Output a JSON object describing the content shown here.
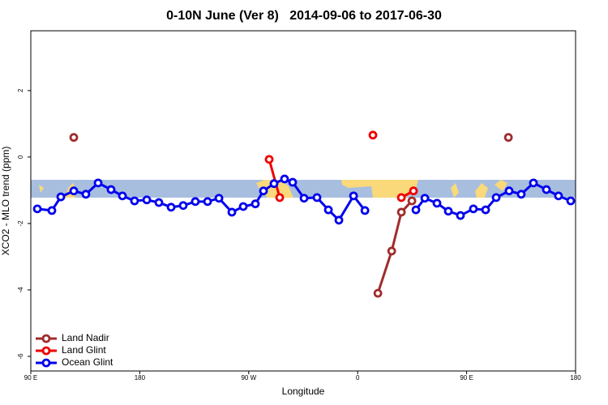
{
  "chart_data": {
    "type": "line",
    "title": "0-10N June (Ver 8)   2014-09-06 to 2017-06-30",
    "x_label": "Longitude",
    "y_label": "XCO2 - MLO trend (ppm)",
    "xlim": [
      90,
      540
    ],
    "ylim": [
      -6.44,
      3.8
    ],
    "xticks": [
      {
        "value": 90,
        "label": "90 E"
      },
      {
        "value": 180,
        "label": "180"
      },
      {
        "value": 270,
        "label": "90 W"
      },
      {
        "value": 360,
        "label": "0"
      },
      {
        "value": 450,
        "label": "90 E"
      },
      {
        "value": 540,
        "label": "180"
      }
    ],
    "yticks": [
      -6,
      -4,
      -2,
      0,
      2
    ],
    "legend": "bottom-left",
    "grid": false,
    "series": [
      {
        "name": "Land Nadir",
        "color": "#a02c2c",
        "x": [
          125.5,
          null,
          376.7,
          388.1,
          396.1,
          404.8,
          null,
          484.5
        ],
        "values": [
          0.59,
          null,
          -4.1,
          -2.83,
          -1.66,
          -1.32,
          null,
          0.59
        ]
      },
      {
        "name": "Land Glint",
        "color": "#ee0000",
        "x": [
          286.9,
          295.6,
          null,
          372.6,
          null,
          396.1,
          406.1
        ],
        "values": [
          -0.07,
          -1.22,
          null,
          0.66,
          null,
          -1.22,
          -1.02
        ]
      },
      {
        "name": "Ocean Glint",
        "color": "#0000ee",
        "x": [
          95.4,
          107.4,
          114.8,
          125.5,
          135.5,
          145.6,
          156.3,
          165.7,
          175.7,
          185.8,
          195.8,
          205.9,
          215.9,
          225.9,
          236,
          245.4,
          256.1,
          265.5,
          275.5,
          282.2,
          290.9,
          299.6,
          306.3,
          315.7,
          326.4,
          335.8,
          344.5,
          356.6,
          366,
          null,
          408.1,
          415.5,
          425.5,
          434.9,
          444.9,
          455.6,
          465.7,
          474.4,
          485.1,
          495.1,
          505.2,
          515.9,
          525.9,
          536
        ],
        "values": [
          -1.56,
          -1.61,
          -1.2,
          -1.02,
          -1.12,
          -0.78,
          -0.98,
          -1.17,
          -1.32,
          -1.29,
          -1.37,
          -1.51,
          -1.46,
          -1.34,
          -1.34,
          -1.24,
          -1.66,
          -1.49,
          -1.41,
          -1.02,
          -0.8,
          -0.66,
          -0.76,
          -1.24,
          -1.22,
          -1.59,
          -1.9,
          -1.17,
          -1.61,
          null,
          -1.59,
          -1.24,
          -1.39,
          -1.63,
          -1.76,
          -1.56,
          -1.59,
          -1.22,
          -1.02,
          -1.12,
          -0.78,
          -0.98,
          -1.17,
          -1.32
        ]
      }
    ]
  }
}
